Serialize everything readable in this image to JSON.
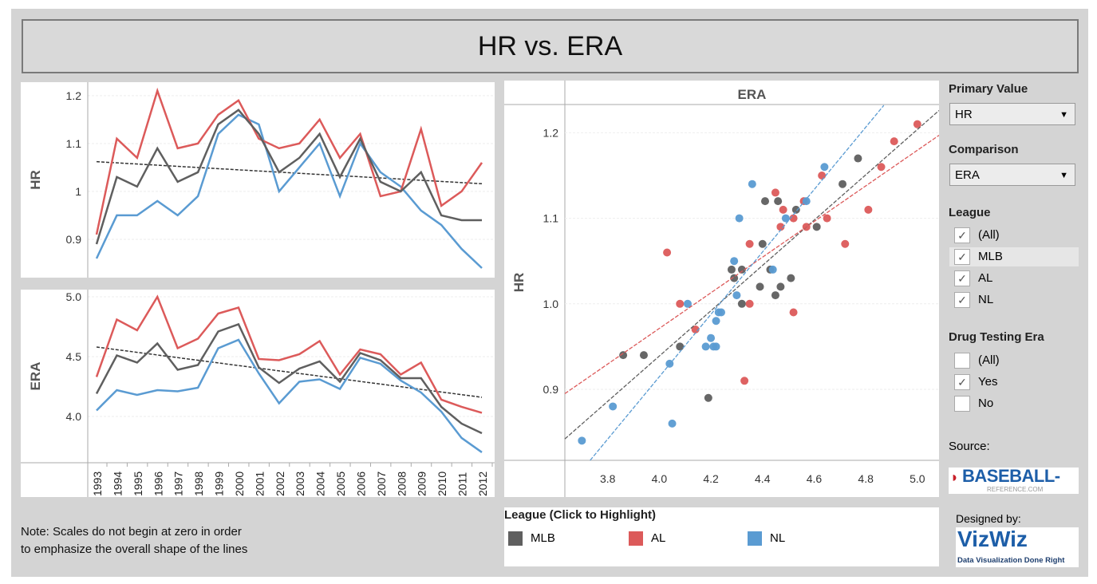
{
  "title": "HR vs. ERA",
  "note": [
    "Note: Scales do not begin at zero in order",
    "to emphasize the overall shape of the lines"
  ],
  "colors": {
    "MLB": "#5f5f5f",
    "AL": "#dc5a5a",
    "NL": "#5a9bd2"
  },
  "controls": {
    "primary_label": "Primary Value",
    "primary_value": "HR",
    "comparison_label": "Comparison",
    "comparison_value": "ERA",
    "league_label": "League",
    "league_items": [
      {
        "label": "(All)",
        "checked": true
      },
      {
        "label": "MLB",
        "checked": true
      },
      {
        "label": "AL",
        "checked": true
      },
      {
        "label": "NL",
        "checked": true
      }
    ],
    "drug_label": "Drug Testing Era",
    "drug_items": [
      {
        "label": "(All)",
        "checked": false
      },
      {
        "label": "Yes",
        "checked": true
      },
      {
        "label": "No",
        "checked": false
      }
    ],
    "source_label": "Source:",
    "source_logo": "BASEBALL-",
    "source_logo_sub": "REFERENCE.COM",
    "designed_label": "Designed by:",
    "designer_logo": "VizWiz",
    "designer_tagline": "Data Visualization Done Right"
  },
  "legend": {
    "title": "League (Click to Highlight)",
    "items": [
      "MLB",
      "AL",
      "NL"
    ]
  },
  "chart_data": [
    {
      "type": "line",
      "ylabel": "HR",
      "ylim": [
        0.82,
        1.228
      ],
      "yticks": [
        0.9,
        1.0,
        1.1,
        1.2
      ],
      "categories": [
        1993,
        1994,
        1995,
        1996,
        1997,
        1998,
        1999,
        2000,
        2001,
        2002,
        2003,
        2004,
        2005,
        2006,
        2007,
        2008,
        2009,
        2010,
        2011,
        2012
      ],
      "series": [
        {
          "name": "MLB",
          "values": [
            0.89,
            1.03,
            1.01,
            1.09,
            1.02,
            1.04,
            1.14,
            1.17,
            1.12,
            1.04,
            1.07,
            1.12,
            1.03,
            1.11,
            1.02,
            1.0,
            1.04,
            0.95,
            0.94,
            0.94
          ]
        },
        {
          "name": "AL",
          "values": [
            0.91,
            1.11,
            1.07,
            1.21,
            1.09,
            1.1,
            1.16,
            1.19,
            1.11,
            1.09,
            1.1,
            1.15,
            1.07,
            1.12,
            0.99,
            1.0,
            1.13,
            0.97,
            1.0,
            1.06
          ]
        },
        {
          "name": "NL",
          "values": [
            0.86,
            0.95,
            0.95,
            0.98,
            0.95,
            0.99,
            1.12,
            1.16,
            1.14,
            1.0,
            1.05,
            1.1,
            0.99,
            1.1,
            1.04,
            1.01,
            0.96,
            0.93,
            0.88,
            0.84
          ]
        }
      ],
      "trend": [
        1.062,
        1.016
      ],
      "grid": true
    },
    {
      "type": "line",
      "ylabel": "ERA",
      "ylim": [
        3.613,
        5.06
      ],
      "yticks": [
        "4.0",
        "4.5",
        "5.0"
      ],
      "categories": [
        1993,
        1994,
        1995,
        1996,
        1997,
        1998,
        1999,
        2000,
        2001,
        2002,
        2003,
        2004,
        2005,
        2006,
        2007,
        2008,
        2009,
        2010,
        2011,
        2012
      ],
      "series": [
        {
          "name": "MLB",
          "values": [
            4.19,
            4.51,
            4.45,
            4.61,
            4.39,
            4.43,
            4.71,
            4.77,
            4.41,
            4.28,
            4.4,
            4.46,
            4.29,
            4.53,
            4.47,
            4.32,
            4.32,
            4.08,
            3.94,
            3.86
          ]
        },
        {
          "name": "AL",
          "values": [
            4.33,
            4.81,
            4.72,
            5.0,
            4.57,
            4.65,
            4.86,
            4.91,
            4.48,
            4.47,
            4.52,
            4.63,
            4.35,
            4.56,
            4.52,
            4.35,
            4.45,
            4.14,
            4.08,
            4.03
          ]
        },
        {
          "name": "NL",
          "values": [
            4.05,
            4.22,
            4.18,
            4.22,
            4.21,
            4.24,
            4.57,
            4.64,
            4.36,
            4.11,
            4.29,
            4.31,
            4.23,
            4.49,
            4.44,
            4.3,
            4.2,
            4.04,
            3.82,
            3.7
          ]
        }
      ],
      "trend": [
        4.58,
        4.16
      ],
      "grid": true
    },
    {
      "type": "scatter",
      "title": "ERA",
      "ylabel": "HR",
      "xlim": [
        3.634,
        5.084
      ],
      "ylim": [
        0.817,
        1.233
      ],
      "xticks": [
        "3.8",
        "4.0",
        "4.2",
        "4.4",
        "4.6",
        "4.8",
        "5.0"
      ],
      "yticks": [
        "0.9",
        "1.0",
        "1.1",
        "1.2"
      ],
      "points": "each league-year: x = ERA series value, y = HR series value",
      "trendlines": [
        {
          "name": "MLB",
          "from": [
            3.634,
            0.842
          ],
          "to": [
            5.084,
            1.226
          ]
        },
        {
          "name": "AL",
          "from": [
            3.634,
            0.895
          ],
          "to": [
            5.084,
            1.197
          ]
        },
        {
          "name": "NL",
          "from": [
            3.732,
            0.817
          ],
          "to": [
            4.87,
            1.232
          ]
        }
      ],
      "grid": true
    }
  ]
}
